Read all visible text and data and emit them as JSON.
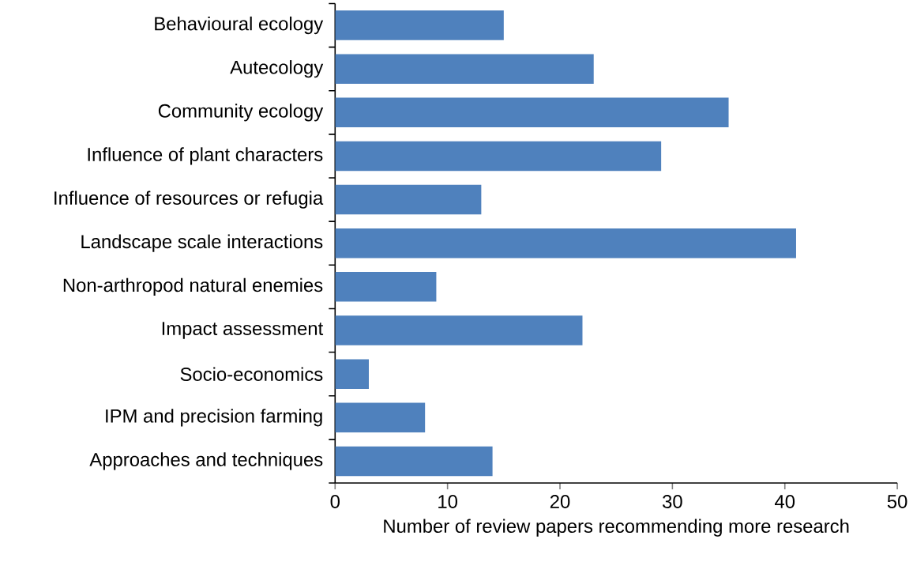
{
  "chart_data": {
    "type": "bar",
    "orientation": "horizontal",
    "xlabel": "Number of review papers recommending more research",
    "categories": [
      "Behavioural ecology",
      "Autecology",
      "Community ecology",
      "Influence of plant characters",
      "Influence of resources or refugia",
      "Landscape scale interactions",
      "Non-arthropod natural enemies",
      "Impact assessment",
      "Socio-economics",
      "IPM and precision farming",
      "Approaches and techniques"
    ],
    "values": [
      15,
      23,
      35,
      29,
      13,
      41,
      9,
      22,
      3,
      8,
      14
    ],
    "color": "#4f81bd",
    "xlim": [
      0,
      50
    ],
    "xticks": [
      0,
      10,
      20,
      30,
      40,
      50
    ]
  }
}
